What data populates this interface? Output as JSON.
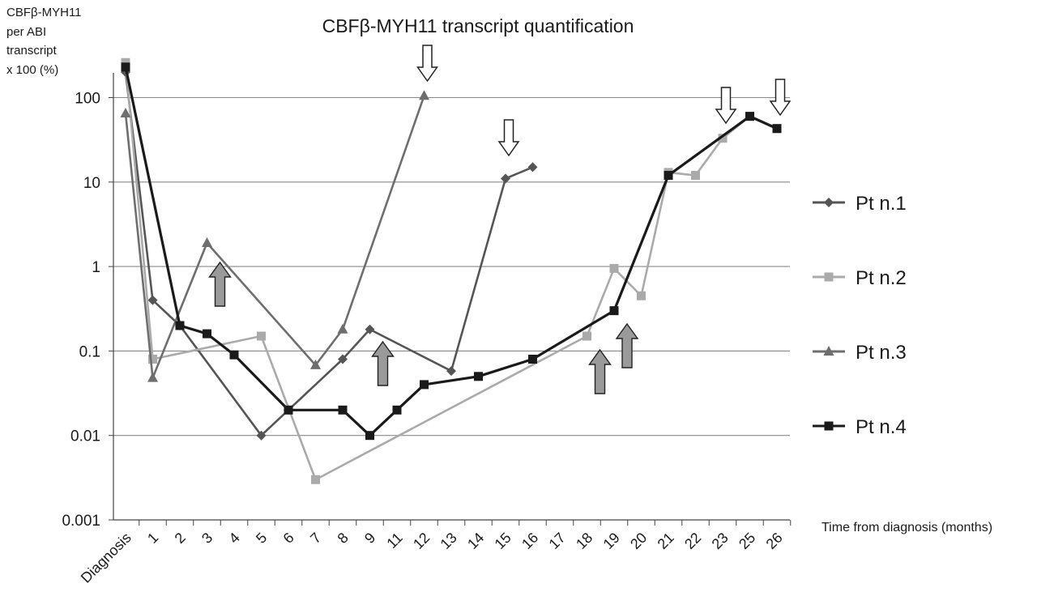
{
  "chart_data": {
    "type": "line",
    "title": "CBFβ-MYH11 transcript quantification",
    "ylabel_lines": [
      "CBFβ-MYH11",
      "per ABI",
      "transcript",
      "x 100 (%)"
    ],
    "xlabel": "Time from diagnosis (months)",
    "y_scale": "log",
    "ylim": [
      0.001,
      300
    ],
    "yticks": [
      {
        "value": 0.001,
        "label": "0.001"
      },
      {
        "value": 0.01,
        "label": "0.01"
      },
      {
        "value": 0.1,
        "label": "0.1"
      },
      {
        "value": 1,
        "label": "1"
      },
      {
        "value": 10,
        "label": "10"
      },
      {
        "value": 100,
        "label": "100"
      }
    ],
    "categories": [
      "Diagnosis",
      "1",
      "2",
      "3",
      "4",
      "5",
      "6",
      "7",
      "8",
      "9",
      "11",
      "12",
      "13",
      "14",
      "15",
      "16",
      "17",
      "18",
      "19",
      "20",
      "21",
      "22",
      "23",
      "25",
      "26"
    ],
    "grid": "horizontal major lines",
    "legend_position": "right",
    "series": [
      {
        "name": "Pt n.1",
        "color": "#555555",
        "marker": "diamond",
        "points": [
          [
            "Diagnosis",
            200
          ],
          [
            "1",
            0.4
          ],
          [
            "2",
            0.2
          ],
          [
            "5",
            0.01
          ],
          [
            "6",
            0.02
          ],
          [
            "8",
            0.08
          ],
          [
            "9",
            0.18
          ],
          [
            "13",
            0.058
          ],
          [
            "15",
            11
          ],
          [
            "16",
            15
          ]
        ]
      },
      {
        "name": "Pt n.2",
        "color": "#aaaaaa",
        "marker": "square",
        "points": [
          [
            "Diagnosis",
            260
          ],
          [
            "1",
            0.08
          ],
          [
            "5",
            0.15
          ],
          [
            "7",
            0.003
          ],
          [
            "18",
            0.15
          ],
          [
            "19",
            0.95
          ],
          [
            "20",
            0.45
          ],
          [
            "21",
            13
          ],
          [
            "22",
            12
          ],
          [
            "23",
            33
          ],
          [
            "25",
            60
          ],
          [
            "26",
            43
          ]
        ]
      },
      {
        "name": "Pt n.3",
        "color": "#6e6e6e",
        "marker": "triangle",
        "points": [
          [
            "Diagnosis",
            65
          ],
          [
            "1",
            0.048
          ],
          [
            "3",
            1.9
          ],
          [
            "7",
            0.068
          ],
          [
            "8",
            0.18
          ],
          [
            "12",
            105
          ]
        ]
      },
      {
        "name": "Pt n.4",
        "color": "#1a1a1a",
        "marker": "square",
        "points": [
          [
            "Diagnosis",
            230
          ],
          [
            "2",
            0.2
          ],
          [
            "3",
            0.16
          ],
          [
            "4",
            0.09
          ],
          [
            "6",
            0.02
          ],
          [
            "8",
            0.02
          ],
          [
            "9",
            0.01
          ],
          [
            "11",
            0.02
          ],
          [
            "12",
            0.04
          ],
          [
            "14",
            0.05
          ],
          [
            "16",
            0.08
          ],
          [
            "19",
            0.3
          ],
          [
            "21",
            12
          ],
          [
            "25",
            60
          ],
          [
            "26",
            43
          ]
        ]
      }
    ],
    "annotations": {
      "up_arrows": [
        "3",
        "9",
        "18",
        "19"
      ],
      "down_arrows": [
        "12",
        "15",
        "23",
        "26"
      ]
    }
  }
}
